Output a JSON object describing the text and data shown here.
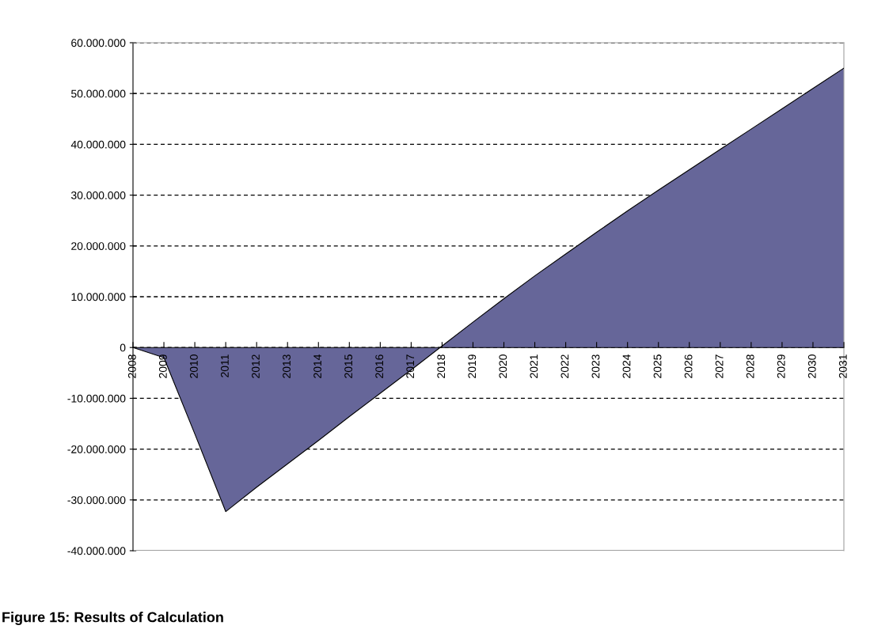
{
  "chart_data": {
    "type": "area",
    "title": "Figure 15: Results of Calculation",
    "categories": [
      "2008",
      "2009",
      "2010",
      "2011",
      "2012",
      "2013",
      "2014",
      "2015",
      "2016",
      "2017",
      "2018",
      "2019",
      "2020",
      "2021",
      "2022",
      "2023",
      "2024",
      "2025",
      "2026",
      "2027",
      "2028",
      "2029",
      "2030",
      "2031"
    ],
    "series": [
      {
        "color": "#666699",
        "values": [
          0,
          -2000000,
          -17000000,
          -32300000,
          -27500000,
          -22900000,
          -18300000,
          -13600000,
          -9000000,
          -4400000,
          300000,
          5000000,
          9600000,
          14100000,
          18400000,
          22700000,
          26900000,
          31000000,
          35000000,
          39000000,
          43000000,
          47000000,
          51000000,
          55000000
        ]
      }
    ],
    "ylim": [
      -40000000,
      60000000
    ],
    "yticks": [
      {
        "value": -40000000,
        "label": "-40.000.000"
      },
      {
        "value": -30000000,
        "label": "-30.000.000"
      },
      {
        "value": -20000000,
        "label": "-20.000.000"
      },
      {
        "value": -10000000,
        "label": "-10.000.000"
      },
      {
        "value": 0,
        "label": "0"
      },
      {
        "value": 10000000,
        "label": "10.000.000"
      },
      {
        "value": 20000000,
        "label": "20.000.000"
      },
      {
        "value": 30000000,
        "label": "30.000.000"
      },
      {
        "value": 40000000,
        "label": "40.000.000"
      },
      {
        "value": 50000000,
        "label": "50.000.000"
      },
      {
        "value": 60000000,
        "label": "60.000.000"
      }
    ],
    "grid": "y"
  }
}
